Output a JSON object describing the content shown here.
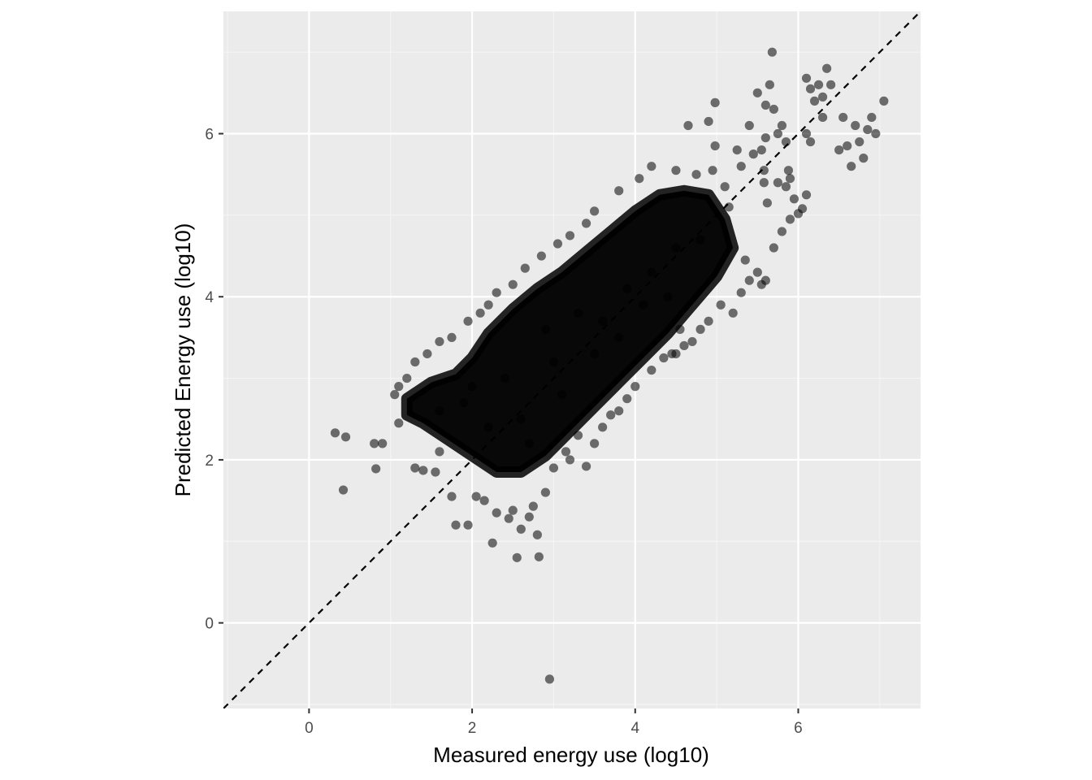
{
  "chart_data": {
    "type": "scatter",
    "title": "",
    "xlabel": "Measured energy use (log10)",
    "ylabel": "Predicted Energy use (log10)",
    "xlim": [
      -1.05,
      7.5
    ],
    "ylim": [
      -1.05,
      7.5
    ],
    "x_ticks": [
      0,
      2,
      4,
      6
    ],
    "y_ticks": [
      0,
      2,
      4,
      6
    ],
    "x_tick_labels": [
      "0",
      "2",
      "4",
      "6"
    ],
    "y_tick_labels": [
      "0",
      "2",
      "4",
      "6"
    ],
    "grid": true,
    "legend": "none",
    "reference_line": {
      "type": "identity",
      "slope": 1,
      "intercept": 0,
      "style": "dashed",
      "color": "#000000"
    },
    "colors": {
      "panel_background": "#ebebeb",
      "grid_major": "#ffffff",
      "grid_minor": "#f5f5f5",
      "point": "#000000",
      "point_alpha": 0.55
    },
    "dense_core": [
      [
        1.2,
        2.75
      ],
      [
        1.5,
        2.95
      ],
      [
        1.8,
        3.05
      ],
      [
        2.0,
        3.25
      ],
      [
        2.2,
        3.55
      ],
      [
        2.5,
        3.85
      ],
      [
        2.8,
        4.1
      ],
      [
        3.1,
        4.3
      ],
      [
        3.4,
        4.55
      ],
      [
        3.7,
        4.8
      ],
      [
        4.0,
        5.05
      ],
      [
        4.3,
        5.25
      ],
      [
        4.6,
        5.3
      ],
      [
        4.9,
        5.25
      ],
      [
        5.1,
        4.95
      ],
      [
        5.2,
        4.6
      ],
      [
        5.0,
        4.25
      ],
      [
        4.7,
        3.9
      ],
      [
        4.4,
        3.55
      ],
      [
        4.1,
        3.25
      ],
      [
        3.8,
        2.95
      ],
      [
        3.5,
        2.65
      ],
      [
        3.2,
        2.35
      ],
      [
        2.9,
        2.05
      ],
      [
        2.6,
        1.85
      ],
      [
        2.3,
        1.85
      ],
      [
        2.0,
        2.05
      ],
      [
        1.7,
        2.25
      ],
      [
        1.4,
        2.45
      ],
      [
        1.2,
        2.55
      ]
    ],
    "points": [
      [
        0.32,
        2.33
      ],
      [
        0.45,
        2.28
      ],
      [
        0.42,
        1.63
      ],
      [
        0.82,
        1.89
      ],
      [
        0.8,
        2.2
      ],
      [
        0.9,
        2.2
      ],
      [
        1.1,
        2.45
      ],
      [
        1.05,
        2.8
      ],
      [
        1.3,
        1.9
      ],
      [
        1.4,
        1.87
      ],
      [
        1.55,
        1.85
      ],
      [
        1.6,
        2.1
      ],
      [
        1.75,
        1.55
      ],
      [
        1.8,
        1.2
      ],
      [
        1.95,
        1.2
      ],
      [
        2.05,
        1.55
      ],
      [
        2.15,
        1.5
      ],
      [
        2.25,
        0.98
      ],
      [
        2.3,
        1.35
      ],
      [
        2.45,
        1.28
      ],
      [
        2.5,
        1.38
      ],
      [
        2.55,
        0.8
      ],
      [
        2.6,
        1.15
      ],
      [
        2.7,
        1.3
      ],
      [
        2.75,
        1.43
      ],
      [
        2.8,
        1.08
      ],
      [
        2.82,
        0.81
      ],
      [
        2.9,
        1.6
      ],
      [
        2.95,
        -0.69
      ],
      [
        3.0,
        1.9
      ],
      [
        3.15,
        2.1
      ],
      [
        3.2,
        2.0
      ],
      [
        3.3,
        2.3
      ],
      [
        3.4,
        1.92
      ],
      [
        3.5,
        2.2
      ],
      [
        3.6,
        2.4
      ],
      [
        3.7,
        2.55
      ],
      [
        3.8,
        2.6
      ],
      [
        3.9,
        2.75
      ],
      [
        4.0,
        2.9
      ],
      [
        4.2,
        3.1
      ],
      [
        4.35,
        3.25
      ],
      [
        4.5,
        3.3
      ],
      [
        4.6,
        3.4
      ],
      [
        4.8,
        3.6
      ],
      [
        4.9,
        3.7
      ],
      [
        5.05,
        3.9
      ],
      [
        5.2,
        3.8
      ],
      [
        5.3,
        4.05
      ],
      [
        5.4,
        4.2
      ],
      [
        5.5,
        4.3
      ],
      [
        5.6,
        4.2
      ],
      [
        5.7,
        4.6
      ],
      [
        5.8,
        4.8
      ],
      [
        5.9,
        4.95
      ],
      [
        5.95,
        5.2
      ],
      [
        6.0,
        5.02
      ],
      [
        6.05,
        5.08
      ],
      [
        6.1,
        5.25
      ],
      [
        5.9,
        5.45
      ],
      [
        5.85,
        5.9
      ],
      [
        5.75,
        6.0
      ],
      [
        5.7,
        6.3
      ],
      [
        5.6,
        6.35
      ],
      [
        5.5,
        6.5
      ],
      [
        5.4,
        6.1
      ],
      [
        5.65,
        6.6
      ],
      [
        5.68,
        7.0
      ],
      [
        5.8,
        6.1
      ],
      [
        6.1,
        6.0
      ],
      [
        6.15,
        5.9
      ],
      [
        6.2,
        6.4
      ],
      [
        6.3,
        6.45
      ],
      [
        6.35,
        6.8
      ],
      [
        6.25,
        6.6
      ],
      [
        6.15,
        6.55
      ],
      [
        6.4,
        6.6
      ],
      [
        6.1,
        6.68
      ],
      [
        6.3,
        6.2
      ],
      [
        6.5,
        5.8
      ],
      [
        6.6,
        5.85
      ],
      [
        6.7,
        6.1
      ],
      [
        6.75,
        5.9
      ],
      [
        6.85,
        6.05
      ],
      [
        6.9,
        6.2
      ],
      [
        6.95,
        6.0
      ],
      [
        7.05,
        6.4
      ],
      [
        6.8,
        5.7
      ],
      [
        6.65,
        5.6
      ],
      [
        6.55,
        6.2
      ],
      [
        4.98,
        6.38
      ],
      [
        4.9,
        6.15
      ],
      [
        4.98,
        5.85
      ],
      [
        4.65,
        6.1
      ],
      [
        5.25,
        5.8
      ],
      [
        5.3,
        5.6
      ],
      [
        5.45,
        5.75
      ],
      [
        5.55,
        5.8
      ],
      [
        5.58,
        5.55
      ],
      [
        5.58,
        5.4
      ],
      [
        5.6,
        5.95
      ],
      [
        5.62,
        5.15
      ],
      [
        5.75,
        5.4
      ],
      [
        5.85,
        5.35
      ],
      [
        5.88,
        5.55
      ],
      [
        4.5,
        5.55
      ],
      [
        4.2,
        5.6
      ],
      [
        4.05,
        5.45
      ],
      [
        3.8,
        5.3
      ],
      [
        3.5,
        5.05
      ],
      [
        3.4,
        4.9
      ],
      [
        3.2,
        4.75
      ],
      [
        3.05,
        4.65
      ],
      [
        2.85,
        4.5
      ],
      [
        2.65,
        4.35
      ],
      [
        2.5,
        4.15
      ],
      [
        2.3,
        4.05
      ],
      [
        2.2,
        3.9
      ],
      [
        2.1,
        3.8
      ],
      [
        1.95,
        3.7
      ],
      [
        1.75,
        3.5
      ],
      [
        1.6,
        3.45
      ],
      [
        1.45,
        3.3
      ],
      [
        1.3,
        3.2
      ],
      [
        1.2,
        3.0
      ],
      [
        1.1,
        2.9
      ],
      [
        4.95,
        5.55
      ],
      [
        4.75,
        5.5
      ],
      [
        5.1,
        5.35
      ],
      [
        5.15,
        5.1
      ],
      [
        4.7,
        3.45
      ],
      [
        4.45,
        3.3
      ],
      [
        4.55,
        3.6
      ],
      [
        5.35,
        4.45
      ],
      [
        5.55,
        4.15
      ],
      [
        2.0,
        2.9
      ],
      [
        2.4,
        3.0
      ],
      [
        2.6,
        2.5
      ],
      [
        3.0,
        3.2
      ],
      [
        3.3,
        3.8
      ],
      [
        3.6,
        3.7
      ],
      [
        3.9,
        4.1
      ],
      [
        4.2,
        4.3
      ],
      [
        4.5,
        4.6
      ],
      [
        4.8,
        4.7
      ],
      [
        2.2,
        2.4
      ],
      [
        2.7,
        2.2
      ],
      [
        3.1,
        2.8
      ],
      [
        3.5,
        3.3
      ],
      [
        3.8,
        3.5
      ],
      [
        4.1,
        3.9
      ],
      [
        4.4,
        4.0
      ],
      [
        1.6,
        2.6
      ],
      [
        1.9,
        2.7
      ],
      [
        2.9,
        3.6
      ]
    ]
  }
}
